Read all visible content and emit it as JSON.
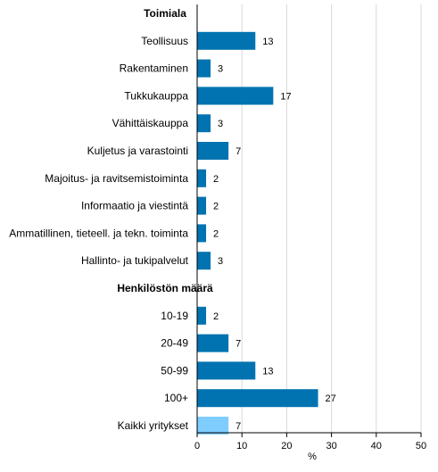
{
  "colors": {
    "bar": "#0073b0",
    "bar_highlight": "#7fcdff",
    "grid": "#d9d9d9",
    "axis": "#000000"
  },
  "chart_data": {
    "type": "bar",
    "orientation": "horizontal",
    "groups": [
      {
        "heading": "Toimiala",
        "items": [
          {
            "label": "Teollisuus",
            "value": 13
          },
          {
            "label": "Rakentaminen",
            "value": 3
          },
          {
            "label": "Tukkukauppa",
            "value": 17
          },
          {
            "label": "Vähittäiskauppa",
            "value": 3
          },
          {
            "label": "Kuljetus ja varastointi",
            "value": 7
          },
          {
            "label": "Majoitus- ja ravitsemistoiminta",
            "value": 2
          },
          {
            "label": "Informaatio ja viestintä",
            "value": 2
          },
          {
            "label": "Ammatillinen, tieteell. ja tekn. toiminta",
            "value": 2
          },
          {
            "label": "Hallinto- ja tukipalvelut",
            "value": 3
          }
        ]
      },
      {
        "heading": "Henkilöstön määrä",
        "items": [
          {
            "label": "10-19",
            "value": 2
          },
          {
            "label": "20-49",
            "value": 7
          },
          {
            "label": "50-99",
            "value": 13
          },
          {
            "label": "100+",
            "value": 27
          }
        ]
      },
      {
        "heading": "",
        "items": [
          {
            "label": "Kaikki yritykset",
            "value": 7,
            "highlight": true
          }
        ]
      }
    ],
    "xlabel": "%",
    "xlim": [
      0,
      50
    ],
    "xticks": [
      0,
      10,
      20,
      30,
      40,
      50
    ],
    "grid": true,
    "data_labels": true
  }
}
